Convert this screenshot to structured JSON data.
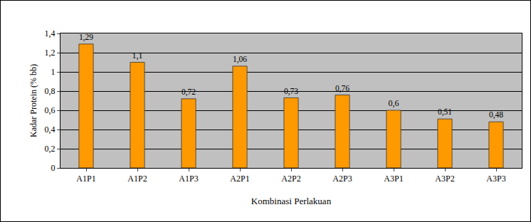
{
  "chart_data": {
    "type": "bar",
    "categories": [
      "A1P1",
      "A1P2",
      "A1P3",
      "A2P1",
      "A2P2",
      "A2P3",
      "A3P1",
      "A3P2",
      "A3P3"
    ],
    "values": [
      1.29,
      1.1,
      0.72,
      1.06,
      0.73,
      0.76,
      0.6,
      0.51,
      0.48
    ],
    "value_labels": [
      "1,29",
      "1,1",
      "0,72",
      "1,06",
      "0,73",
      "0,76",
      "0,6",
      "0,51",
      "0,48"
    ],
    "data_labels": true,
    "color": "#ff9900",
    "x_label": "Kombinasi Perlakuan",
    "y_label": "Kadar Protein (% bb)",
    "ylim": [
      0,
      1.4
    ],
    "yticks": [
      0,
      {
        "value": 0.2,
        "label": "0,2"
      },
      {
        "value": 0.4,
        "label": "0,4"
      },
      {
        "value": 0.6,
        "label": "0,6"
      },
      {
        "value": 0.8,
        "label": "0,8"
      },
      1,
      {
        "value": 1.2,
        "label": "1,2"
      },
      {
        "value": 1.4,
        "label": "1,4"
      }
    ],
    "grid": true
  }
}
